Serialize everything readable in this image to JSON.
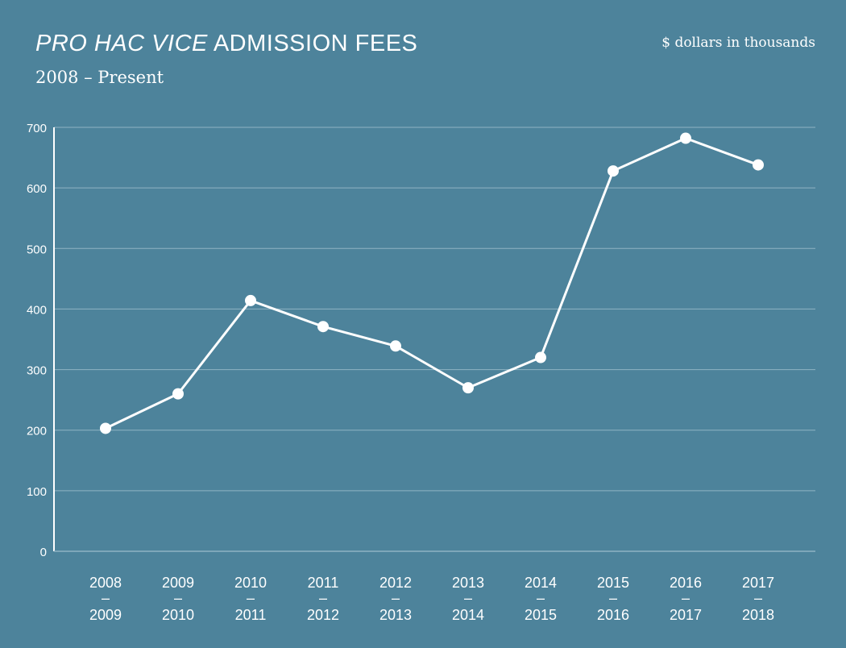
{
  "header": {
    "title_italic": "PRO HAC VICE",
    "title_rest": "ADMISSION FEES",
    "subtitle": "2008 – Present",
    "units": "$ dollars in thousands"
  },
  "colors": {
    "background": "#4d839b",
    "line": "#ffffff",
    "grid": "#8fb3c3"
  },
  "chart_data": {
    "type": "line",
    "title": "PRO HAC VICE ADMISSION FEES",
    "subtitle": "2008 – Present",
    "xlabel": "",
    "ylabel": "$ dollars in thousands",
    "ylim": [
      0,
      700
    ],
    "yticks": [
      "0",
      "100",
      "200",
      "300",
      "400",
      "500",
      "600",
      "700"
    ],
    "categories": [
      [
        "2008",
        "–",
        "2009"
      ],
      [
        "2009",
        "–",
        "2010"
      ],
      [
        "2010",
        "–",
        "2011"
      ],
      [
        "2011",
        "–",
        "2012"
      ],
      [
        "2012",
        "–",
        "2013"
      ],
      [
        "2013",
        "–",
        "2014"
      ],
      [
        "2014",
        "–",
        "2015"
      ],
      [
        "2015",
        "–",
        "2016"
      ],
      [
        "2016",
        "–",
        "2017"
      ],
      [
        "2017",
        "–",
        "2018"
      ]
    ],
    "series": [
      {
        "values": [
          203,
          260,
          414,
          371,
          339,
          270,
          320,
          628,
          682,
          638
        ]
      }
    ],
    "grid": true,
    "legend": "none"
  }
}
